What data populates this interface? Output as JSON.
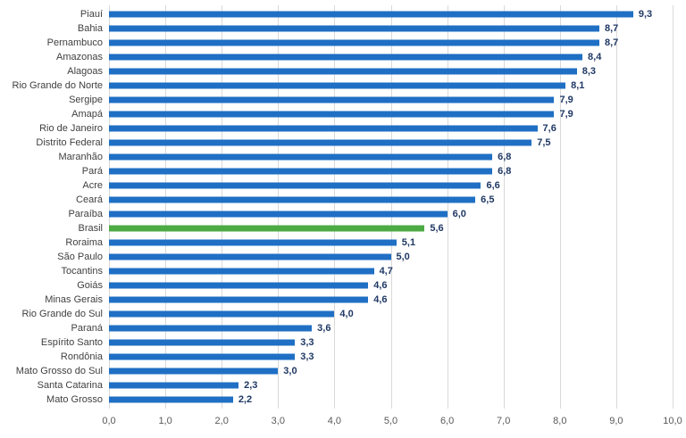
{
  "page": {
    "background_color": "#ffffff"
  },
  "chart_data": {
    "type": "bar",
    "orientation": "horizontal",
    "title": "",
    "xlabel": "",
    "ylabel": "",
    "xlim": [
      0,
      10
    ],
    "grid": true,
    "legend": "none",
    "bar_color": "#1f6fc4",
    "highlight_color": "#4cab43",
    "value_label_color": "#1f3864",
    "category_label_color": "#404040",
    "axis_label_color": "#595959",
    "gridline_color": "#d9d9d9",
    "highlight_category": "Brasil",
    "categories": [
      "Piauí",
      "Bahia",
      "Pernambuco",
      "Amazonas",
      "Alagoas",
      "Rio Grande do Norte",
      "Sergipe",
      "Amapá",
      "Rio de Janeiro",
      "Distrito Federal",
      "Maranhão",
      "Pará",
      "Acre",
      "Ceará",
      "Paraíba",
      "Brasil",
      "Roraima",
      "São Paulo",
      "Tocantins",
      "Goiás",
      "Minas Gerais",
      "Rio Grande do Sul",
      "Paraná",
      "Espírito Santo",
      "Rondônia",
      "Mato Grosso do Sul",
      "Santa Catarina",
      "Mato Grosso"
    ],
    "values": [
      9.3,
      8.7,
      8.7,
      8.4,
      8.3,
      8.1,
      7.9,
      7.9,
      7.6,
      7.5,
      6.8,
      6.8,
      6.6,
      6.5,
      6.0,
      5.6,
      5.1,
      5.0,
      4.7,
      4.6,
      4.6,
      4.0,
      3.6,
      3.3,
      3.3,
      3.0,
      2.3,
      2.2
    ],
    "value_labels": [
      "9,3",
      "8,7",
      "8,7",
      "8,4",
      "8,3",
      "8,1",
      "7,9",
      "7,9",
      "7,6",
      "7,5",
      "6,8",
      "6,8",
      "6,6",
      "6,5",
      "6,0",
      "5,6",
      "5,1",
      "5,0",
      "4,7",
      "4,6",
      "4,6",
      "4,0",
      "3,6",
      "3,3",
      "3,3",
      "3,0",
      "2,3",
      "2,2"
    ],
    "x_ticks": [
      "0,0",
      "1,0",
      "2,0",
      "3,0",
      "4,0",
      "5,0",
      "6,0",
      "7,0",
      "8,0",
      "9,0",
      "10,0"
    ],
    "x_tick_values": [
      0,
      1,
      2,
      3,
      4,
      5,
      6,
      7,
      8,
      9,
      10
    ]
  }
}
